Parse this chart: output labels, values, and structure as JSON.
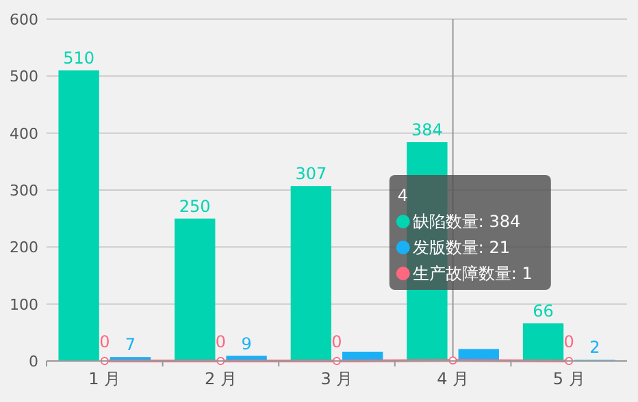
{
  "chart_data": {
    "type": "bar",
    "categories": [
      "1 月",
      "2 月",
      "3 月",
      "4 月",
      "5 月"
    ],
    "series": [
      {
        "color": "#00d4b0",
        "values": [
          510,
          250,
          307,
          384,
          66
        ],
        "value_labels": [
          "510",
          "250",
          "307",
          "384",
          "66"
        ]
      },
      {
        "color": "#1ab0f5",
        "values": [
          7,
          9,
          16,
          21,
          2
        ],
        "value_labels": [
          "7",
          "9",
          null,
          null,
          "2"
        ]
      },
      {
        "type": "line",
        "color": "#ff6680",
        "marker": "circle",
        "values": [
          0,
          0,
          0,
          1,
          0
        ],
        "value_labels": [
          "0",
          "0",
          "0",
          null,
          "0"
        ]
      }
    ],
    "ylim": [
      0,
      600
    ],
    "yticks": [
      0,
      100,
      200,
      300,
      400,
      500,
      600
    ],
    "grid": "y",
    "annotations": [
      "4",
      "缺陷数量: 384",
      "发版数量: 21",
      "生产故障数量: 1"
    ],
    "ref_lines": [
      {
        "axis": "x",
        "value": "4 月",
        "color": "#999999"
      }
    ]
  }
}
